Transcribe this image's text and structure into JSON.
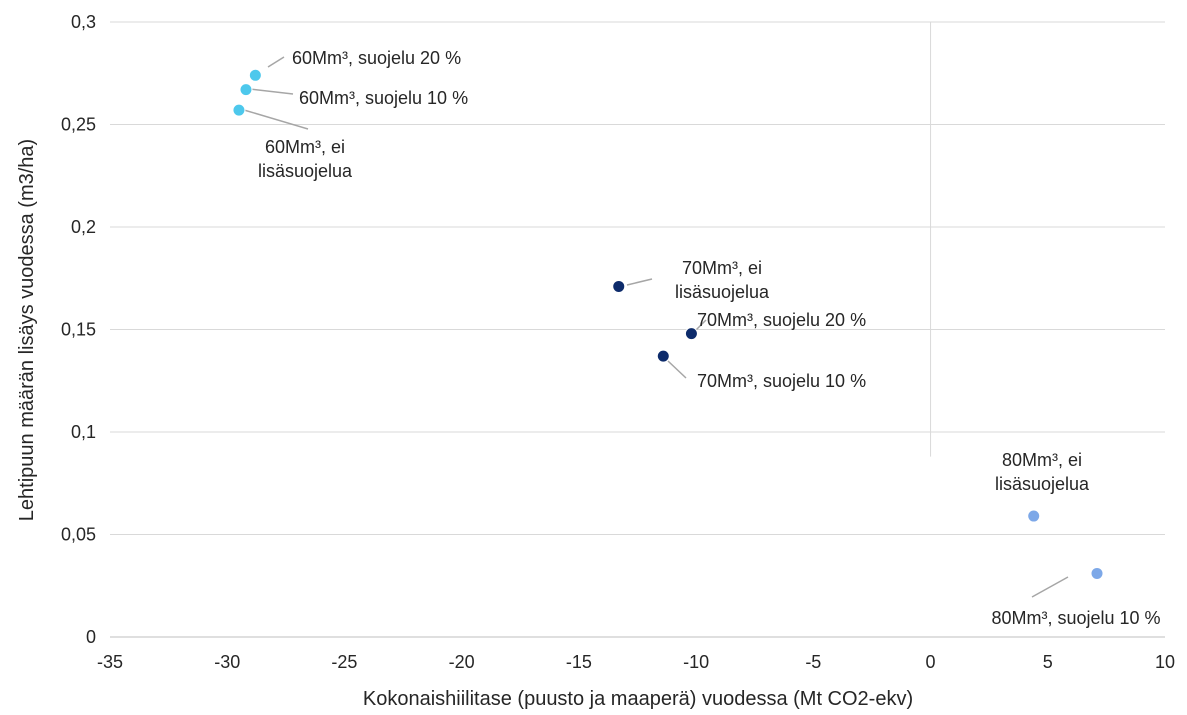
{
  "chart_data": {
    "type": "scatter",
    "title": "",
    "xlabel": "Kokonaishiilitase (puusto ja maaperä) vuodessa (Mt CO2-ekv)",
    "ylabel": "Lehtipuun määrän lisäys vuodessa (m3/ha)",
    "xlim": [
      -35,
      10
    ],
    "ylim": [
      0,
      0.3
    ],
    "x_ticks": [
      -35,
      -30,
      -25,
      -20,
      -15,
      -10,
      -5,
      0,
      5,
      10
    ],
    "x_tick_labels": [
      "-35",
      "-30",
      "-25",
      "-20",
      "-15",
      "-10",
      "-5",
      "0",
      "5",
      "10"
    ],
    "y_ticks": [
      0,
      0.05,
      0.1,
      0.15,
      0.2,
      0.25,
      0.3
    ],
    "y_tick_labels": [
      "0",
      "0,05",
      "0,1",
      "0,15",
      "0,2",
      "0,25",
      "0,3"
    ],
    "grid": "horizontal",
    "legend": "none",
    "points": [
      {
        "label_lines": [
          "60Mm³, suojelu 20 %"
        ],
        "x": -28.8,
        "y": 0.274,
        "color": "#4dc8ec"
      },
      {
        "label_lines": [
          "60Mm³, suojelu 10 %"
        ],
        "x": -29.2,
        "y": 0.267,
        "color": "#4dc8ec"
      },
      {
        "label_lines": [
          "60Mm³, ei",
          "lisäsuojelua"
        ],
        "x": -29.5,
        "y": 0.257,
        "color": "#4dc8ec"
      },
      {
        "label_lines": [
          "70Mm³, ei",
          "lisäsuojelua"
        ],
        "x": -13.3,
        "y": 0.171,
        "color": "#0d2b6b"
      },
      {
        "label_lines": [
          "70Mm³, suojelu 20 %"
        ],
        "x": -10.2,
        "y": 0.148,
        "color": "#0d2b6b"
      },
      {
        "label_lines": [
          "70Mm³, suojelu 10 %"
        ],
        "x": -11.4,
        "y": 0.137,
        "color": "#0d2b6b"
      },
      {
        "label_lines": [
          "80Mm³, ei",
          "lisäsuojelua"
        ],
        "x": 4.4,
        "y": 0.059,
        "color": "#7da8e8"
      },
      {
        "label_lines": [
          "80Mm³, suojelu 10 %"
        ],
        "x": 7.1,
        "y": 0.031,
        "color": "#7da8e8"
      }
    ]
  }
}
